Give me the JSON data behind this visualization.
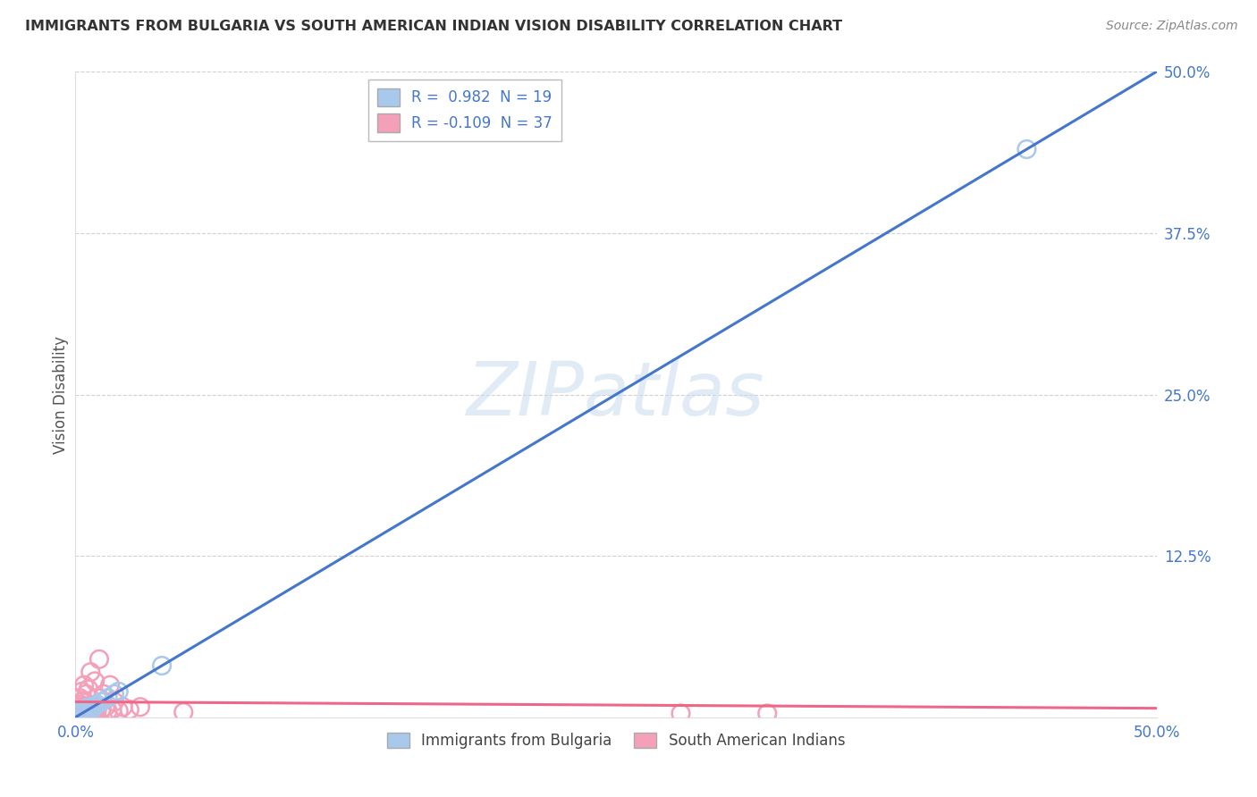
{
  "title": "IMMIGRANTS FROM BULGARIA VS SOUTH AMERICAN INDIAN VISION DISABILITY CORRELATION CHART",
  "source": "Source: ZipAtlas.com",
  "ylabel": "Vision Disability",
  "xlim": [
    0,
    0.5
  ],
  "ylim": [
    0,
    0.5
  ],
  "xticks": [
    0.0,
    0.125,
    0.25,
    0.375,
    0.5
  ],
  "yticks": [
    0.0,
    0.125,
    0.25,
    0.375,
    0.5
  ],
  "blue_R": 0.982,
  "blue_N": 19,
  "pink_R": -0.109,
  "pink_N": 37,
  "blue_label": "Immigrants from Bulgaria",
  "pink_label": "South American Indians",
  "blue_color": "#A8C8EC",
  "pink_color": "#F4A0B8",
  "blue_line_color": "#4477CC",
  "pink_line_color": "#EE6688",
  "blue_scatter_x": [
    0.001,
    0.002,
    0.002,
    0.003,
    0.003,
    0.004,
    0.005,
    0.005,
    0.006,
    0.007,
    0.008,
    0.009,
    0.01,
    0.012,
    0.015,
    0.018,
    0.02,
    0.04,
    0.44
  ],
  "blue_scatter_y": [
    0.002,
    0.003,
    0.004,
    0.004,
    0.005,
    0.006,
    0.005,
    0.007,
    0.006,
    0.008,
    0.007,
    0.009,
    0.01,
    0.012,
    0.015,
    0.018,
    0.02,
    0.04,
    0.44
  ],
  "pink_scatter_x": [
    0.001,
    0.001,
    0.002,
    0.002,
    0.002,
    0.003,
    0.003,
    0.003,
    0.004,
    0.004,
    0.004,
    0.005,
    0.005,
    0.006,
    0.006,
    0.007,
    0.007,
    0.008,
    0.009,
    0.009,
    0.01,
    0.01,
    0.011,
    0.012,
    0.013,
    0.014,
    0.015,
    0.016,
    0.017,
    0.018,
    0.02,
    0.022,
    0.025,
    0.03,
    0.05,
    0.28,
    0.32
  ],
  "pink_scatter_y": [
    0.005,
    0.01,
    0.004,
    0.008,
    0.015,
    0.006,
    0.012,
    0.02,
    0.007,
    0.013,
    0.025,
    0.005,
    0.018,
    0.006,
    0.022,
    0.007,
    0.035,
    0.008,
    0.006,
    0.028,
    0.005,
    0.015,
    0.045,
    0.006,
    0.018,
    0.008,
    0.005,
    0.025,
    0.006,
    0.012,
    0.005,
    0.008,
    0.006,
    0.008,
    0.004,
    0.003,
    0.003
  ],
  "blue_trend_x": [
    0.0,
    0.5
  ],
  "blue_trend_y": [
    0.0,
    0.5
  ],
  "pink_trend_x": [
    0.0,
    0.5
  ],
  "pink_trend_y": [
    0.012,
    0.007
  ],
  "watermark": "ZIPatlas",
  "background_color": "#FFFFFF",
  "grid_color": "#CCCCCC"
}
